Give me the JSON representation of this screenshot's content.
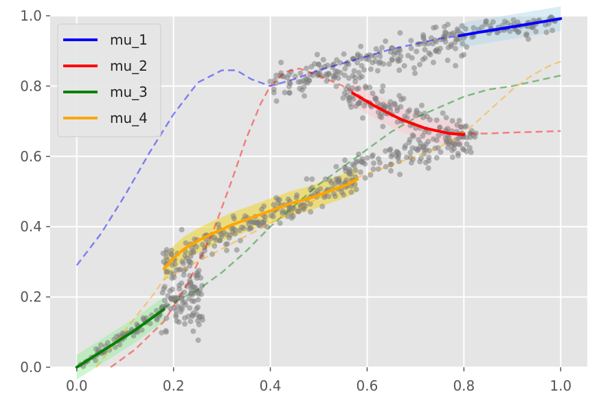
{
  "chart_data": {
    "type": "line",
    "title": "",
    "xlabel": "",
    "ylabel": "",
    "xlim": [
      -0.055,
      1.055
    ],
    "ylim": [
      0.0,
      1.0
    ],
    "grid": true,
    "background": "#e5e5e5",
    "x_ticks": [
      "0.0",
      "0.2",
      "0.4",
      "0.6",
      "0.8",
      "1.0"
    ],
    "x_tick_values": [
      0.0,
      0.2,
      0.4,
      0.6,
      0.8,
      1.0
    ],
    "y_ticks": [
      "0.0",
      "0.2",
      "0.4",
      "0.6",
      "0.8",
      "1.0"
    ],
    "y_tick_values": [
      0.0,
      0.2,
      0.4,
      0.6,
      0.8,
      1.0
    ],
    "legend_position": "top-left",
    "series": [
      {
        "name": "mu_1",
        "color": "#0000ff",
        "dashed": {
          "x": [
            0.0,
            0.05,
            0.1,
            0.15,
            0.2,
            0.25,
            0.3,
            0.33,
            0.36,
            0.4,
            0.45,
            0.5,
            0.55,
            0.6,
            0.65,
            0.7,
            0.75,
            0.8,
            0.85,
            0.9,
            0.95,
            1.0
          ],
          "y": [
            0.29,
            0.38,
            0.49,
            0.61,
            0.72,
            0.81,
            0.845,
            0.845,
            0.82,
            0.8,
            0.82,
            0.845,
            0.865,
            0.885,
            0.905,
            0.92,
            0.935,
            0.945,
            0.955,
            0.965,
            0.98,
            0.99
          ]
        },
        "solid": {
          "x": [
            0.79,
            0.83,
            0.87,
            0.91,
            0.95,
            1.0
          ],
          "y": [
            0.943,
            0.953,
            0.962,
            0.971,
            0.98,
            0.992
          ]
        },
        "band_color": "#add8e6"
      },
      {
        "name": "mu_2",
        "color": "#ff0000",
        "dashed": {
          "x": [
            0.07,
            0.12,
            0.18,
            0.23,
            0.28,
            0.32,
            0.35,
            0.38,
            0.4,
            0.43,
            0.46,
            0.5,
            0.55,
            0.6,
            0.65,
            0.7,
            0.75,
            0.8,
            0.85,
            0.9,
            0.95,
            1.0
          ],
          "y": [
            0.0,
            0.05,
            0.13,
            0.24,
            0.38,
            0.53,
            0.65,
            0.75,
            0.8,
            0.84,
            0.85,
            0.83,
            0.8,
            0.76,
            0.72,
            0.69,
            0.67,
            0.665,
            0.665,
            0.668,
            0.67,
            0.672
          ]
        },
        "solid": {
          "x": [
            0.57,
            0.62,
            0.67,
            0.72,
            0.77,
            0.8
          ],
          "y": [
            0.78,
            0.74,
            0.705,
            0.68,
            0.665,
            0.662
          ]
        },
        "band_color": "#ffc0cb"
      },
      {
        "name": "mu_3",
        "color": "#008000",
        "dashed": {
          "x": [
            0.18,
            0.25,
            0.3,
            0.35,
            0.4,
            0.45,
            0.5,
            0.55,
            0.6,
            0.65,
            0.7,
            0.75,
            0.8,
            0.85,
            0.9,
            0.95,
            1.0
          ],
          "y": [
            0.17,
            0.22,
            0.27,
            0.33,
            0.4,
            0.46,
            0.52,
            0.57,
            0.62,
            0.67,
            0.71,
            0.74,
            0.77,
            0.79,
            0.8,
            0.815,
            0.83
          ]
        },
        "solid": {
          "x": [
            0.0,
            0.04,
            0.08,
            0.12,
            0.16,
            0.18
          ],
          "y": [
            0.0,
            0.035,
            0.07,
            0.105,
            0.145,
            0.165
          ]
        },
        "band_color": "#90ee90"
      },
      {
        "name": "mu_4",
        "color": "#ffa500",
        "dashed": {
          "x": [
            0.04,
            0.08,
            0.12,
            0.16,
            0.18,
            0.58,
            0.62,
            0.66,
            0.7,
            0.74,
            0.78,
            0.82,
            0.86,
            0.9,
            0.94,
            0.98,
            1.0
          ],
          "y": [
            0.0,
            0.07,
            0.14,
            0.21,
            0.25,
            0.54,
            0.56,
            0.58,
            0.6,
            0.62,
            0.65,
            0.69,
            0.74,
            0.79,
            0.83,
            0.86,
            0.87
          ]
        },
        "solid": {
          "x": [
            0.18,
            0.2,
            0.22,
            0.25,
            0.28,
            0.32,
            0.36,
            0.4,
            0.44,
            0.48,
            0.52,
            0.56,
            0.58
          ],
          "y": [
            0.28,
            0.31,
            0.335,
            0.36,
            0.38,
            0.405,
            0.425,
            0.445,
            0.465,
            0.48,
            0.5,
            0.52,
            0.535
          ]
        },
        "band_color": "#f0d000"
      }
    ],
    "scatter": {
      "color": "#808080",
      "clusters": [
        {
          "x_range": [
            0.0,
            0.18
          ],
          "y_center": [
            0.0,
            0.165
          ],
          "spread": 0.01,
          "n": 70
        },
        {
          "x_range": [
            0.18,
            0.26
          ],
          "y_center": [
            0.22,
            0.18
          ],
          "spread": 0.05,
          "n": 110
        },
        {
          "x_range": [
            0.18,
            0.58
          ],
          "y_center": [
            0.3,
            0.54
          ],
          "spread": 0.02,
          "n": 200
        },
        {
          "x_range": [
            0.56,
            0.82
          ],
          "y_center": [
            0.56,
            0.66
          ],
          "spread": 0.025,
          "n": 120
        },
        {
          "x_range": [
            0.4,
            0.8
          ],
          "y_center": [
            0.8,
            0.94
          ],
          "spread": 0.025,
          "n": 200
        },
        {
          "x_range": [
            0.55,
            0.8
          ],
          "y_center": [
            0.78,
            0.662
          ],
          "spread": 0.025,
          "n": 110
        },
        {
          "x_range": [
            0.8,
            1.0
          ],
          "y_center": [
            0.945,
            0.99
          ],
          "spread": 0.015,
          "n": 70
        }
      ]
    }
  }
}
